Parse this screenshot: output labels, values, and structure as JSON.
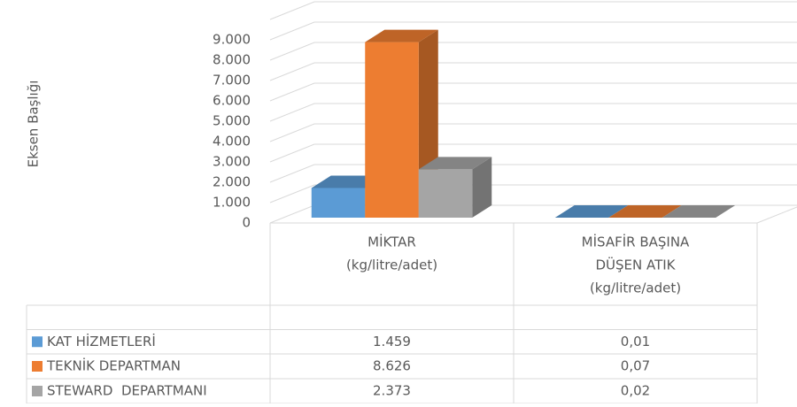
{
  "chart_data": {
    "type": "bar3d",
    "y_axis_label": "Eksen Başlığı",
    "categories": [
      [
        "MİKTAR",
        "(kg/litre/adet)"
      ],
      [
        "MİSAFİR BAŞINA",
        "DÜŞEN ATIK",
        "(kg/litre/adet)"
      ]
    ],
    "series": [
      {
        "name": "KAT HİZMETLERİ",
        "color": "#5b9bd5",
        "values": [
          1459,
          0.01
        ],
        "value_labels": [
          "1.459",
          "0,01"
        ]
      },
      {
        "name": "TEKNİK DEPARTMAN",
        "color": "#ed7d31",
        "values": [
          8626,
          0.07
        ],
        "value_labels": [
          "8.626",
          "0,07"
        ]
      },
      {
        "name": "STEWARD  DEPARTMANI",
        "color": "#a5a5a5",
        "values": [
          2373,
          0.02
        ],
        "value_labels": [
          "2.373",
          "0,02"
        ]
      }
    ],
    "ylim": [
      0,
      10000
    ],
    "yticks": [
      0,
      {
        "value": 1000,
        "label": "1.000"
      },
      {
        "value": 2000,
        "label": "2.000"
      },
      {
        "value": 3000,
        "label": "3.000"
      },
      {
        "value": 4000,
        "label": "4.000"
      },
      {
        "value": 5000,
        "label": "5.000"
      },
      {
        "value": 6000,
        "label": "6.000"
      },
      {
        "value": 7000,
        "label": "7.000"
      },
      {
        "value": 8000,
        "label": "8.000"
      },
      {
        "value": 9000,
        "label": "9.000"
      }
    ],
    "grid": true
  }
}
